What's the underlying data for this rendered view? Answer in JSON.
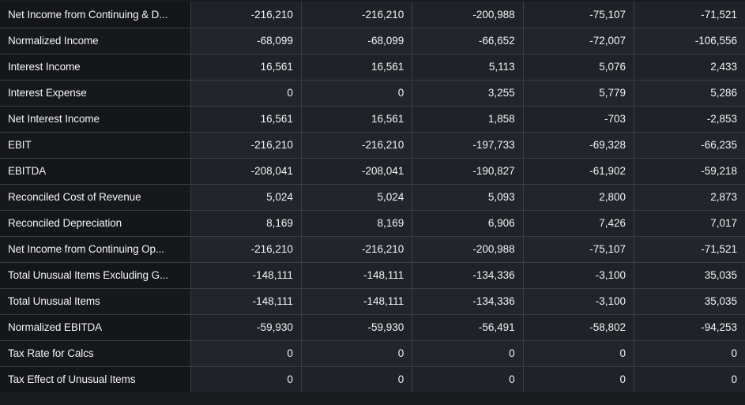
{
  "table": {
    "rows": [
      {
        "label": "Net Income from Continuing & D...",
        "values": [
          "-216,210",
          "-216,210",
          "-200,988",
          "-75,107",
          "-71,521"
        ]
      },
      {
        "label": "Normalized Income",
        "values": [
          "-68,099",
          "-68,099",
          "-66,652",
          "-72,007",
          "-106,556"
        ]
      },
      {
        "label": "Interest Income",
        "values": [
          "16,561",
          "16,561",
          "5,113",
          "5,076",
          "2,433"
        ]
      },
      {
        "label": "Interest Expense",
        "values": [
          "0",
          "0",
          "3,255",
          "5,779",
          "5,286"
        ]
      },
      {
        "label": "Net Interest Income",
        "values": [
          "16,561",
          "16,561",
          "1,858",
          "-703",
          "-2,853"
        ]
      },
      {
        "label": "EBIT",
        "values": [
          "-216,210",
          "-216,210",
          "-197,733",
          "-69,328",
          "-66,235"
        ]
      },
      {
        "label": "EBITDA",
        "values": [
          "-208,041",
          "-208,041",
          "-190,827",
          "-61,902",
          "-59,218"
        ]
      },
      {
        "label": "Reconciled Cost of Revenue",
        "values": [
          "5,024",
          "5,024",
          "5,093",
          "2,800",
          "2,873"
        ]
      },
      {
        "label": "Reconciled Depreciation",
        "values": [
          "8,169",
          "8,169",
          "6,906",
          "7,426",
          "7,017"
        ]
      },
      {
        "label": "Net Income from Continuing Op...",
        "values": [
          "-216,210",
          "-216,210",
          "-200,988",
          "-75,107",
          "-71,521"
        ]
      },
      {
        "label": "Total Unusual Items Excluding G...",
        "values": [
          "-148,111",
          "-148,111",
          "-134,336",
          "-3,100",
          "35,035"
        ]
      },
      {
        "label": "Total Unusual Items",
        "values": [
          "-148,111",
          "-148,111",
          "-134,336",
          "-3,100",
          "35,035"
        ]
      },
      {
        "label": "Normalized EBITDA",
        "values": [
          "-59,930",
          "-59,930",
          "-56,491",
          "-58,802",
          "-94,253"
        ]
      },
      {
        "label": "Tax Rate for Calcs",
        "values": [
          "0",
          "0",
          "0",
          "0",
          "0"
        ]
      },
      {
        "label": "Tax Effect of Unusual Items",
        "values": [
          "0",
          "0",
          "0",
          "0",
          "0"
        ]
      }
    ]
  }
}
